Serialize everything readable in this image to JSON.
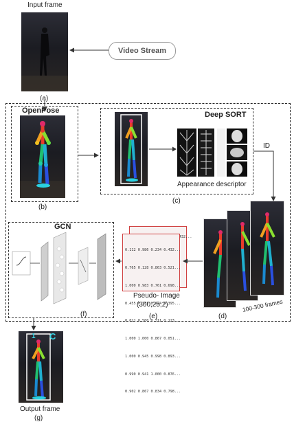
{
  "top": {
    "input_label": "Input frame",
    "stream_label": "Video Stream",
    "step_a": "(a)"
  },
  "openpose": {
    "title": "OpenPose",
    "step": "(b)"
  },
  "deepsort": {
    "title": "Deep SORT",
    "descriptor_label": "Appearance descriptor",
    "step": "(c)",
    "id_label": "ID"
  },
  "frames": {
    "count_label": "100-300 frames",
    "step": "(d)"
  },
  "pseudo": {
    "header_row": "0.112 0.986 0.234 0.432...",
    "rows": [
      "0.112 0.986 0.234 0.432...",
      "0.765 0.128 0.863 0.521...",
      "1.000 0.983 0.761 0.698...",
      "0.455 0.783 0.224 0.395...",
      "0.021 0.500 0.311 0.123...",
      "1.000 1.000 0.867 0.051...",
      "1.000 0.945 0.998 0.893...",
      "0.990 0.941 1.000 0.876...",
      "0.902 0.867 0.834 0.798..."
    ],
    "label": "Pseudo- Image",
    "shape": "(300,25,2)",
    "step": "(e)"
  },
  "gcn": {
    "title": "GCN",
    "step": "(f)"
  },
  "output": {
    "label": "Output frame",
    "step": "(g)",
    "id_number": "1",
    "class_letter": "C"
  },
  "colors": {
    "dashed": "#222222",
    "pseudo_border": "#d04040",
    "arrow": "#333333",
    "cyan": "#3ad8e8"
  }
}
